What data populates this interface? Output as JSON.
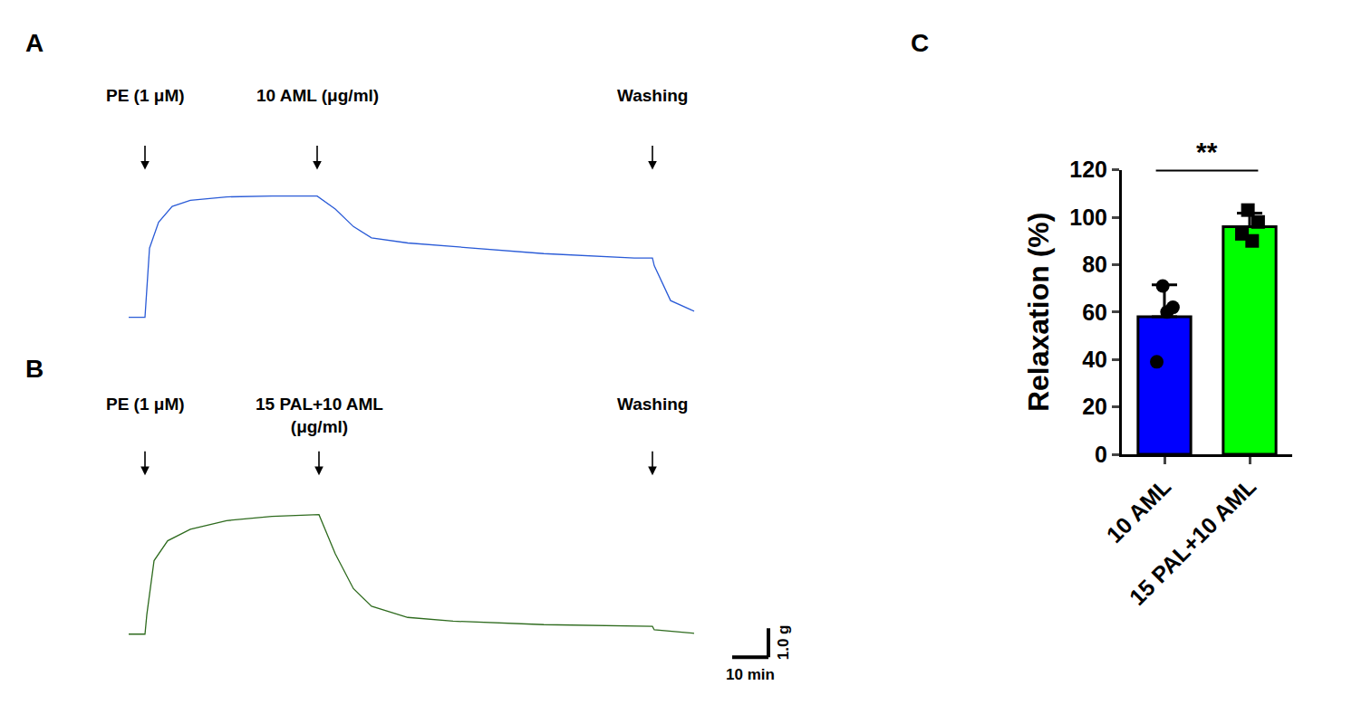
{
  "chart_data": [
    {
      "type": "line",
      "panel": "A",
      "color": "#2a5bd7",
      "tick_labels": false,
      "x": [
        0,
        4.5,
        5.75,
        8.25,
        12,
        17,
        27,
        39.5,
        52,
        57,
        62,
        67,
        77,
        89.5,
        114.5,
        139.5,
        144.5,
        145,
        149.5,
        156
      ],
      "values": [
        0,
        0,
        2.4,
        3.3,
        3.85,
        4.06,
        4.18,
        4.21,
        4.21,
        3.76,
        3.15,
        2.76,
        2.58,
        2.45,
        2.21,
        2.06,
        2.06,
        1.79,
        0.58,
        0.21
      ],
      "xlim": [
        0,
        185
      ],
      "ylim": [
        -0.5,
        5
      ],
      "annotations": [
        {
          "x": 4.5,
          "text": "PE (1 μM)"
        },
        {
          "x": 52,
          "text": "10 AML (μg/ml)"
        },
        {
          "x": 144.5,
          "text": "Washing"
        }
      ]
    },
    {
      "type": "line",
      "panel": "B",
      "color": "#2e6b1e",
      "tick_labels": false,
      "x": [
        0,
        4.5,
        5,
        7,
        10.75,
        17,
        27,
        39.5,
        52.5,
        57,
        62,
        67,
        77,
        89.5,
        114.5,
        139.5,
        144.5,
        145,
        156
      ],
      "values": [
        0,
        0,
        0.67,
        2.55,
        3.24,
        3.64,
        3.94,
        4.09,
        4.15,
        2.79,
        1.58,
        0.97,
        0.58,
        0.45,
        0.33,
        0.27,
        0.27,
        0.15,
        0.03
      ],
      "xlim": [
        0,
        185
      ],
      "ylim": [
        -1,
        4.5
      ],
      "annotations": [
        {
          "x": 4.5,
          "text": "PE (1 μM)"
        },
        {
          "x": 52.5,
          "text": "15 PAL+10 AML\n(μg/ml)"
        },
        {
          "x": 144.5,
          "text": "Washing"
        }
      ],
      "scale_bar": {
        "x": 10,
        "y": 1.0,
        "x_label": "10 min",
        "y_label": "1.0 g"
      }
    },
    {
      "type": "bar",
      "panel": "C",
      "y_label": "Relaxation (%)",
      "categories": [
        "10 AML",
        "15 PAL+10 AML"
      ],
      "values": [
        58,
        96
      ],
      "errors": [
        13.5,
        5.7
      ],
      "colors": [
        "#0000ff",
        "#00ff00"
      ],
      "points": [
        {
          "values": [
            71,
            62,
            60,
            39
          ],
          "marker": "circle"
        },
        {
          "values": [
            103,
            98,
            90,
            93
          ],
          "marker": "square"
        }
      ],
      "ylim": [
        0,
        120
      ],
      "yticks": [
        0,
        20,
        40,
        60,
        80,
        100,
        120
      ],
      "significance": "**"
    }
  ]
}
